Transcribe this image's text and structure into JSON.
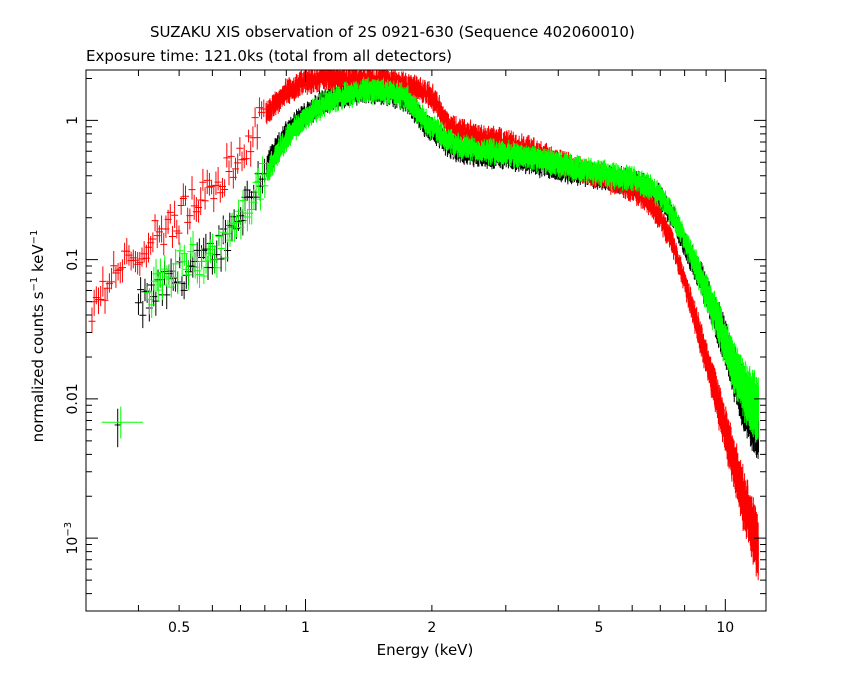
{
  "chart_data": {
    "type": "scatter",
    "title": "SUZAKU XIS observation of 2S 0921-630 (Sequence 402060010)",
    "subtitle": "Exposure time: 121.0ks (total from all detectors)",
    "xlabel": "Energy (keV)",
    "ylabel": "normalized counts s^-1 keV^-1",
    "xscale": "log",
    "yscale": "log",
    "xlim": [
      0.3,
      12.5
    ],
    "ylim": [
      0.0003,
      2.3
    ],
    "xticks": [
      {
        "value": 0.5,
        "label": "0.5"
      },
      {
        "value": 1,
        "label": "1"
      },
      {
        "value": 2,
        "label": "2"
      },
      {
        "value": 5,
        "label": "5"
      },
      {
        "value": 10,
        "label": "10"
      }
    ],
    "yticks": [
      {
        "value": 1,
        "label": "1"
      },
      {
        "value": 0.1,
        "label": "0.1"
      },
      {
        "value": 0.01,
        "label": "0.01"
      },
      {
        "value": 0.001,
        "label": "10",
        "exp": "-3"
      }
    ],
    "grid": false,
    "legend": "none",
    "series": [
      {
        "color": "#000000",
        "x": [
          0.4,
          0.45,
          0.5,
          0.55,
          0.6,
          0.65,
          0.7,
          0.8,
          0.9,
          1.0,
          1.1,
          1.2,
          1.4,
          1.6,
          1.75,
          1.85,
          1.95,
          2.1,
          2.3,
          2.5,
          3.0,
          3.5,
          4.0,
          5.0,
          6.0,
          6.5,
          7.0,
          7.5,
          8.0,
          9.0,
          10.0,
          11.0,
          12.0
        ],
        "y": [
          0.045,
          0.06,
          0.075,
          0.09,
          0.11,
          0.15,
          0.22,
          0.45,
          0.8,
          1.1,
          1.35,
          1.5,
          1.65,
          1.55,
          1.4,
          1.1,
          0.9,
          0.75,
          0.6,
          0.58,
          0.55,
          0.5,
          0.45,
          0.4,
          0.36,
          0.33,
          0.28,
          0.2,
          0.13,
          0.06,
          0.025,
          0.01,
          0.006
        ]
      },
      {
        "color": "#ff0000",
        "x": [
          0.31,
          0.33,
          0.36,
          0.4,
          0.45,
          0.5,
          0.55,
          0.6,
          0.65,
          0.7,
          0.75,
          0.8,
          0.9,
          1.0,
          1.1,
          1.2,
          1.4,
          1.6,
          1.8,
          2.0,
          2.2,
          2.5,
          3.0,
          3.5,
          4.0,
          5.0,
          6.0,
          6.5,
          7.0,
          7.5,
          8.0,
          9.0,
          10.0,
          11.0,
          12.0
        ],
        "y": [
          0.04,
          0.06,
          0.08,
          0.12,
          0.16,
          0.2,
          0.26,
          0.33,
          0.42,
          0.55,
          0.8,
          1.1,
          1.6,
          1.9,
          2.0,
          2.0,
          2.0,
          1.9,
          1.75,
          1.5,
          0.9,
          0.8,
          0.7,
          0.6,
          0.5,
          0.4,
          0.32,
          0.27,
          0.2,
          0.13,
          0.07,
          0.02,
          0.006,
          0.002,
          0.0008
        ]
      },
      {
        "color": "#00ff00",
        "x": [
          0.42,
          0.45,
          0.5,
          0.55,
          0.6,
          0.65,
          0.7,
          0.8,
          0.9,
          1.0,
          1.1,
          1.2,
          1.4,
          1.6,
          1.75,
          1.85,
          1.95,
          2.1,
          2.3,
          2.5,
          3.0,
          3.5,
          4.0,
          5.0,
          6.0,
          6.5,
          7.0,
          7.5,
          8.0,
          9.0,
          10.0,
          11.0,
          12.0
        ],
        "y": [
          0.055,
          0.07,
          0.09,
          0.1,
          0.1,
          0.13,
          0.2,
          0.4,
          0.75,
          1.05,
          1.3,
          1.45,
          1.65,
          1.6,
          1.45,
          1.15,
          0.95,
          0.8,
          0.65,
          0.62,
          0.58,
          0.53,
          0.48,
          0.42,
          0.38,
          0.34,
          0.29,
          0.21,
          0.14,
          0.06,
          0.025,
          0.012,
          0.008
        ]
      }
    ],
    "extra_points": [
      {
        "color": "#000000",
        "x": 0.357,
        "y": 0.0065,
        "xerr": [
          0.351,
          0.364
        ],
        "yerr": [
          0.0045,
          0.0085
        ]
      },
      {
        "color": "#00ff00",
        "x": 0.363,
        "y": 0.0068,
        "xerr": [
          0.327,
          0.41
        ],
        "yerr": [
          0.0052,
          0.0088
        ]
      }
    ]
  }
}
